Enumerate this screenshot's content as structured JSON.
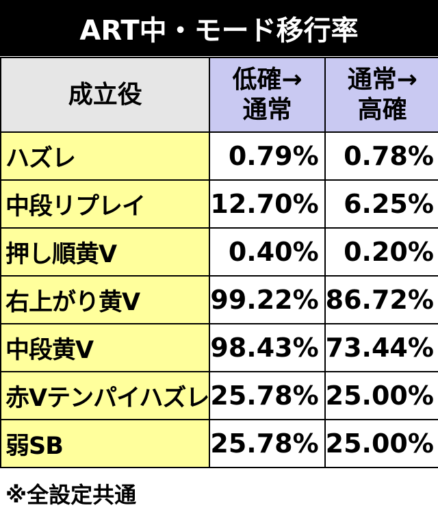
{
  "title": "ART中・モード移行率",
  "table": {
    "header": [
      "成立役",
      "低確→\n通常",
      "通常→\n高確"
    ],
    "rows": [
      [
        "ハズレ",
        "0.79%",
        "0.78%"
      ],
      [
        "中段リプレイ",
        "12.70%",
        "6.25%"
      ],
      [
        "押し順黄V",
        "0.40%",
        "0.20%"
      ],
      [
        "右上がり黄V",
        "99.22%",
        "86.72%"
      ],
      [
        "中段黄V",
        "98.43%",
        "73.44%"
      ],
      [
        "赤Vテンパイハズレ",
        "25.78%",
        "25.00%"
      ],
      [
        "弱SB",
        "25.78%",
        "25.00%"
      ]
    ]
  },
  "footnote": "※全設定共通"
}
